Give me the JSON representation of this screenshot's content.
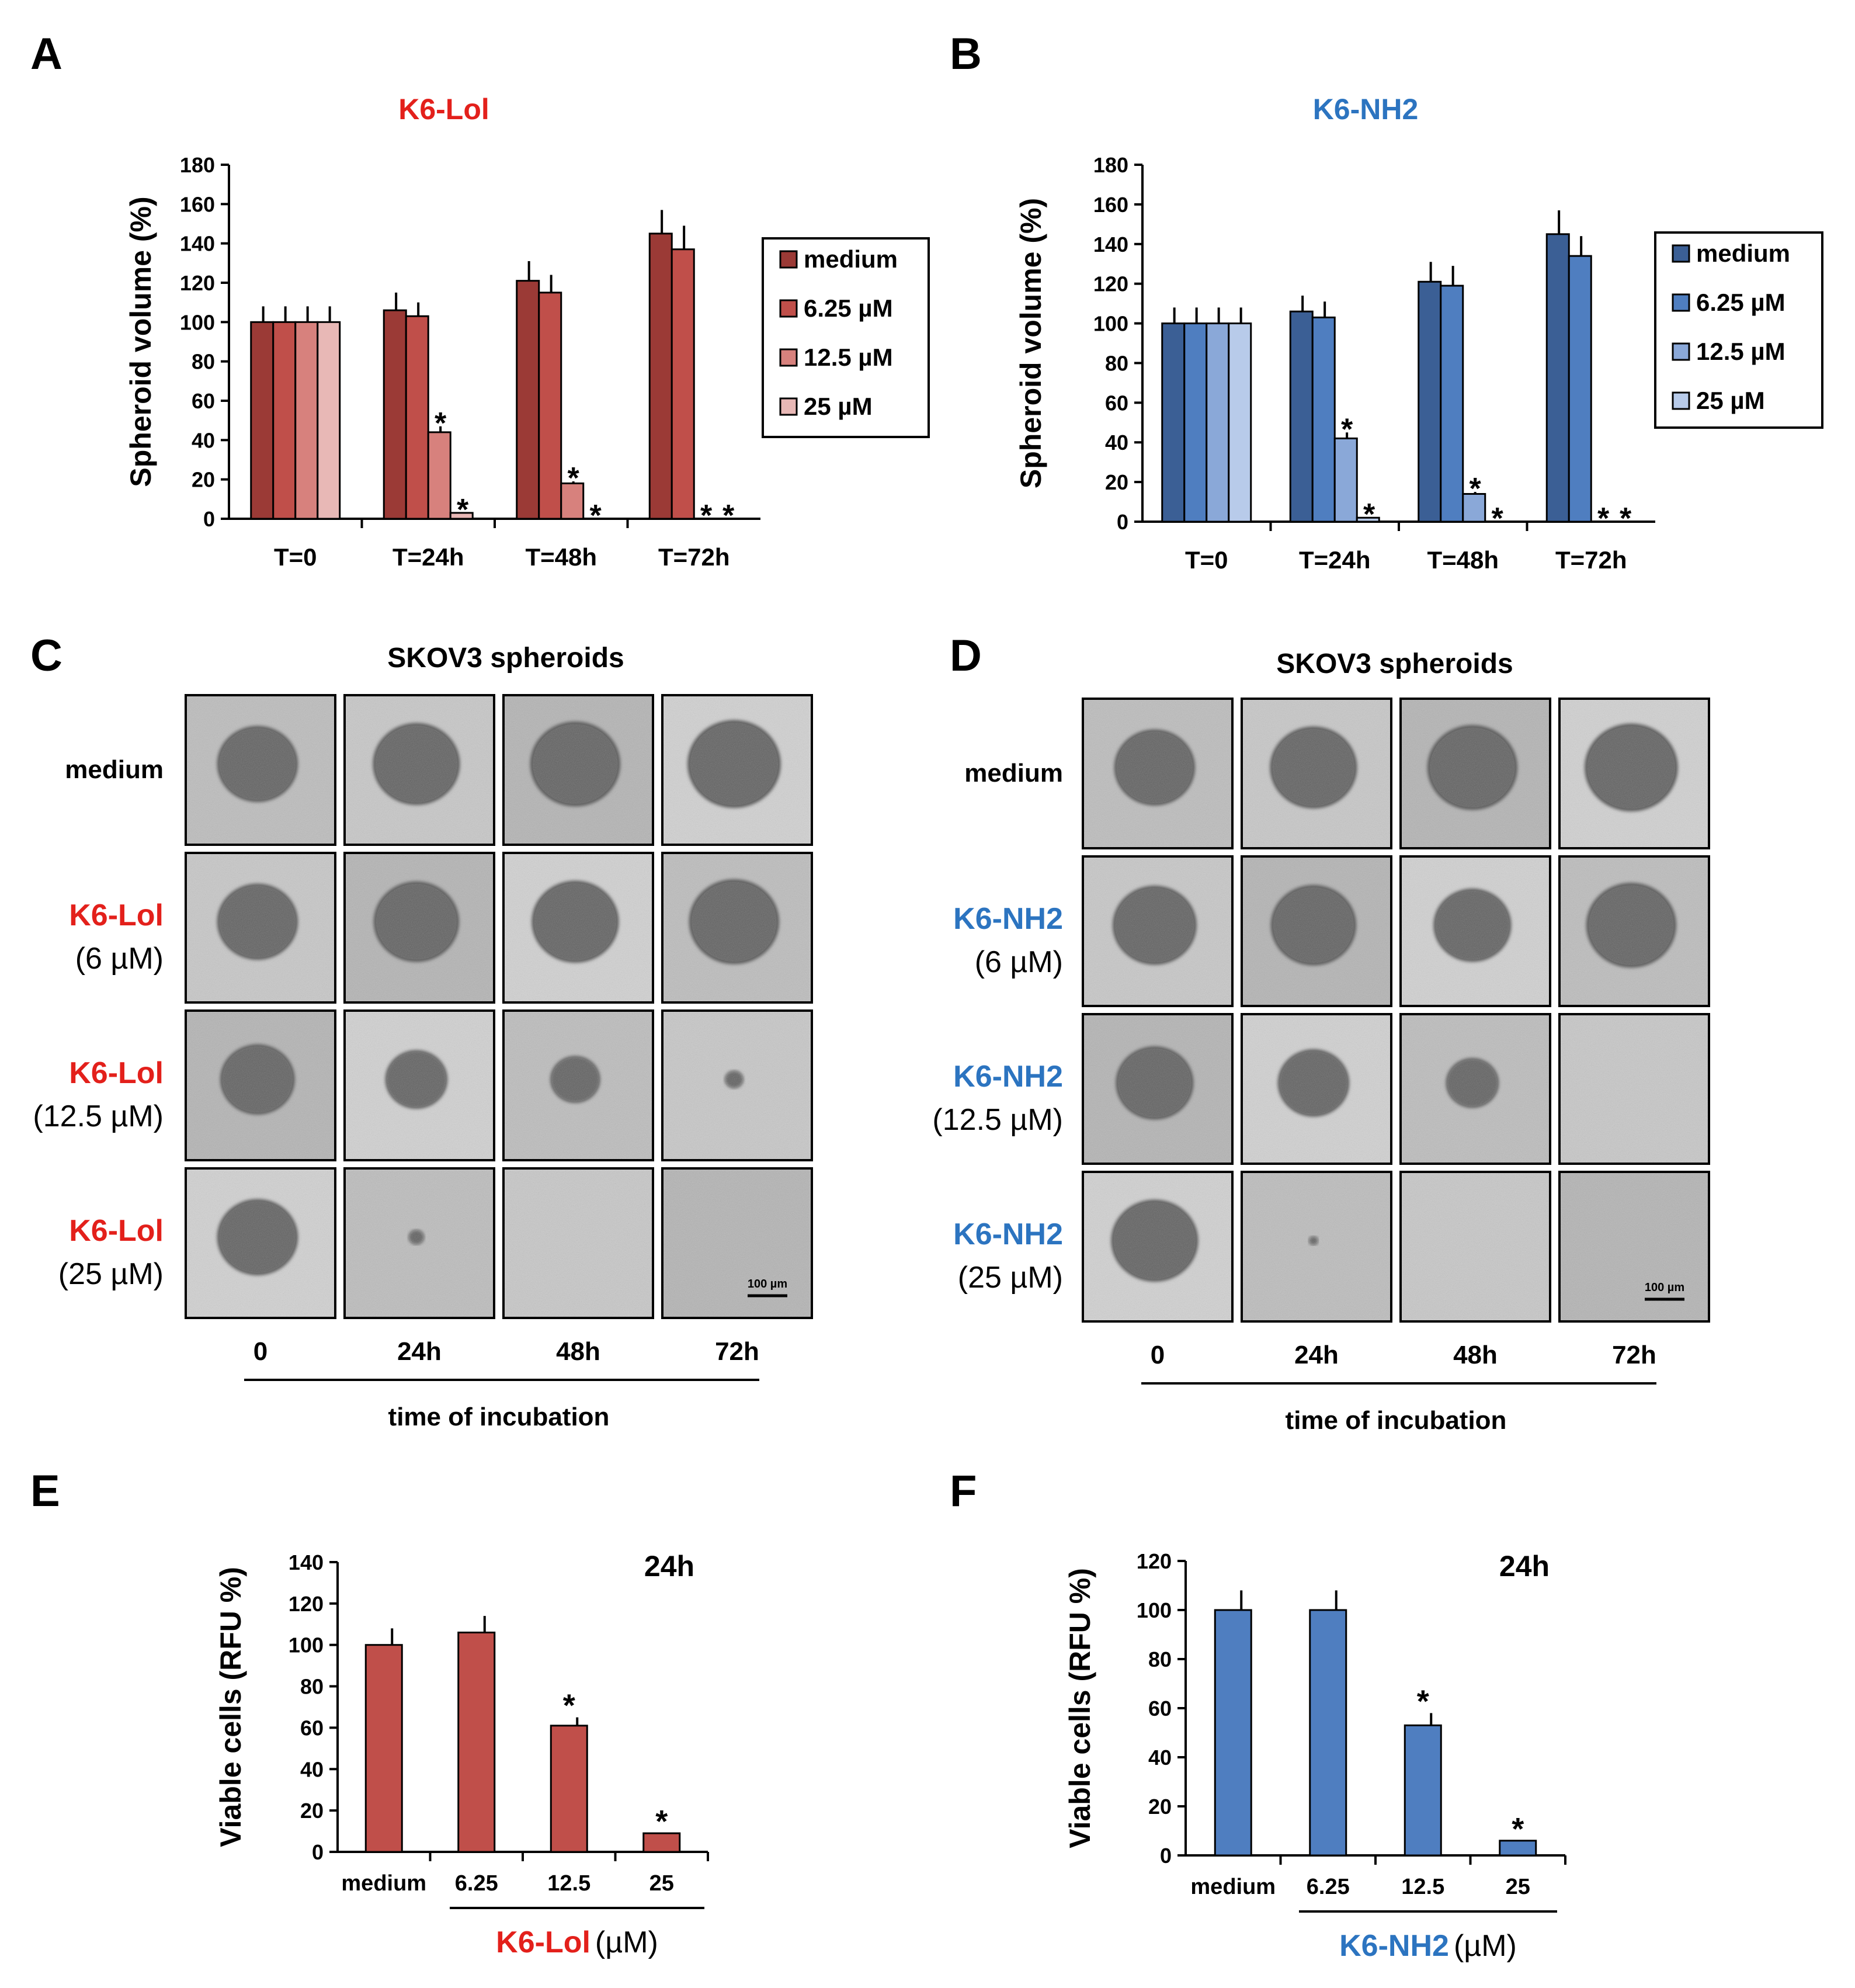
{
  "panels": {
    "A": "A",
    "B": "B",
    "C": "C",
    "D": "D",
    "E": "E",
    "F": "F"
  },
  "colors": {
    "lol": [
      "#9b3a36",
      "#c04f4a",
      "#d7817d",
      "#e8b8b6"
    ],
    "nh2": [
      "#3b5f95",
      "#4f7ec0",
      "#8aa8d8",
      "#b8cbea"
    ],
    "lol_title": "#e3201b",
    "nh2_title": "#2c74c0"
  },
  "images": {
    "C_title": "SKOV3 spheroids",
    "D_title": "SKOV3 spheroids",
    "C_rows": [
      {
        "name": "medium",
        "conc": ""
      },
      {
        "name": "K6-Lol",
        "conc": "(6 µM)"
      },
      {
        "name": "K6-Lol",
        "conc": "(12.5 µM)"
      },
      {
        "name": "K6-Lol",
        "conc": "(25 µM)"
      }
    ],
    "D_rows": [
      {
        "name": "medium",
        "conc": ""
      },
      {
        "name": "K6-NH2",
        "conc": "(6 µM)"
      },
      {
        "name": "K6-NH2",
        "conc": "(12.5 µM)"
      },
      {
        "name": "K6-NH2",
        "conc": "(25 µM)"
      }
    ],
    "time_labels": [
      "0",
      "24h",
      "48h",
      "72h"
    ],
    "time_axis_label": "time of incubation",
    "scale_bar": "100 µm",
    "spheroids_C": [
      [
        0.52,
        0.56,
        0.58,
        0.6
      ],
      [
        0.52,
        0.55,
        0.56,
        0.58
      ],
      [
        0.48,
        0.4,
        0.32,
        0.12
      ],
      [
        0.52,
        0.1,
        0,
        0
      ]
    ],
    "spheroids_D": [
      [
        0.52,
        0.56,
        0.58,
        0.6
      ],
      [
        0.54,
        0.55,
        0.5,
        0.58
      ],
      [
        0.5,
        0.46,
        0.34,
        0
      ],
      [
        0.56,
        0.06,
        0,
        0
      ]
    ]
  },
  "chart_data": [
    {
      "id": "A",
      "type": "bar",
      "title": "K6-Lol",
      "ylabel": "Spheroid volume (%)",
      "ylim": [
        0,
        180
      ],
      "yticks": [
        0,
        20,
        40,
        60,
        80,
        100,
        120,
        140,
        160,
        180
      ],
      "categories": [
        "T=0",
        "T=24h",
        "T=48h",
        "T=72h"
      ],
      "series": [
        {
          "name": "medium",
          "values": [
            100,
            106,
            121,
            145
          ],
          "errors": [
            8,
            9,
            10,
            12
          ]
        },
        {
          "name": "6.25 µM",
          "values": [
            100,
            103,
            115,
            137
          ],
          "errors": [
            8,
            7,
            9,
            12
          ]
        },
        {
          "name": "12.5 µM",
          "values": [
            100,
            44,
            18,
            0
          ],
          "errors": [
            8,
            3,
            1,
            0
          ]
        },
        {
          "name": "25 µM",
          "values": [
            100,
            3,
            0,
            0
          ],
          "errors": [
            8,
            0,
            0,
            0
          ]
        }
      ],
      "annotations": [
        {
          "category": 1,
          "series": 2,
          "text": "*"
        },
        {
          "category": 1,
          "series": 3,
          "text": "*"
        },
        {
          "category": 2,
          "series": 2,
          "text": "*"
        },
        {
          "category": 2,
          "series": 3,
          "text": "*"
        },
        {
          "category": 3,
          "series": 2,
          "text": "*"
        },
        {
          "category": 3,
          "series": 3,
          "text": "*"
        }
      ],
      "legend_position": "right"
    },
    {
      "id": "B",
      "type": "bar",
      "title": "K6-NH2",
      "ylabel": "Spheroid volume (%)",
      "ylim": [
        0,
        180
      ],
      "yticks": [
        0,
        20,
        40,
        60,
        80,
        100,
        120,
        140,
        160,
        180
      ],
      "categories": [
        "T=0",
        "T=24h",
        "T=48h",
        "T=72h"
      ],
      "series": [
        {
          "name": "medium",
          "values": [
            100,
            106,
            121,
            145
          ],
          "errors": [
            8,
            8,
            10,
            12
          ]
        },
        {
          "name": "6.25 µM",
          "values": [
            100,
            103,
            119,
            134
          ],
          "errors": [
            8,
            8,
            10,
            10
          ]
        },
        {
          "name": "12.5 µM",
          "values": [
            100,
            42,
            14,
            0
          ],
          "errors": [
            8,
            3,
            1,
            0
          ]
        },
        {
          "name": "25 µM",
          "values": [
            100,
            2,
            0,
            0
          ],
          "errors": [
            8,
            0,
            0,
            0
          ]
        }
      ],
      "annotations": [
        {
          "category": 1,
          "series": 2,
          "text": "*"
        },
        {
          "category": 1,
          "series": 3,
          "text": "*"
        },
        {
          "category": 2,
          "series": 2,
          "text": "*"
        },
        {
          "category": 2,
          "series": 3,
          "text": "*"
        },
        {
          "category": 3,
          "series": 2,
          "text": "*"
        },
        {
          "category": 3,
          "series": 3,
          "text": "*"
        }
      ],
      "legend_position": "right"
    },
    {
      "id": "E",
      "type": "bar",
      "title": "24h",
      "ylabel": "Viable cells (RFU %)",
      "ylim": [
        0,
        140
      ],
      "yticks": [
        0,
        20,
        40,
        60,
        80,
        100,
        120,
        140
      ],
      "categories": [
        "medium",
        "6.25",
        "12.5",
        "25"
      ],
      "values": [
        100,
        106,
        61,
        9
      ],
      "errors": [
        8,
        8,
        4,
        0
      ],
      "annotations": [
        {
          "category": 2,
          "text": "*"
        },
        {
          "category": 3,
          "text": "*"
        }
      ],
      "xlabel_name": "K6-Lol",
      "xlabel_unit": "(µM)"
    },
    {
      "id": "F",
      "type": "bar",
      "title": "24h",
      "ylabel": "Viable cells (RFU %)",
      "ylim": [
        0,
        120
      ],
      "yticks": [
        0,
        20,
        40,
        60,
        80,
        100,
        120
      ],
      "categories": [
        "medium",
        "6.25",
        "12.5",
        "25"
      ],
      "values": [
        100,
        100,
        53,
        6
      ],
      "errors": [
        8,
        8,
        5,
        0
      ],
      "annotations": [
        {
          "category": 2,
          "text": "*"
        },
        {
          "category": 3,
          "text": "*"
        }
      ],
      "xlabel_name": "K6-NH2",
      "xlabel_unit": "(µM)"
    }
  ]
}
